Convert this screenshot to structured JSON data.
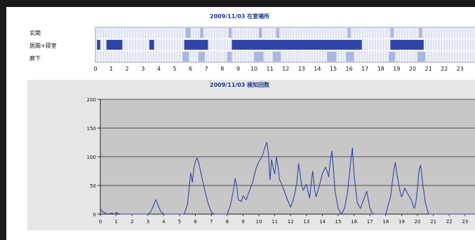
{
  "presence_chart": {
    "title": "2009/11/03  在室場所",
    "rows": [
      "玄関",
      "居間+寝室",
      "廊下"
    ],
    "hours": [
      "0",
      "1",
      "2",
      "3",
      "4",
      "5",
      "6",
      "7",
      "8",
      "9",
      "10",
      "11",
      "12",
      "13",
      "14",
      "15",
      "16",
      "17",
      "18",
      "19",
      "20",
      "21",
      "22",
      "23"
    ],
    "colors": {
      "empty": "#eef0f7",
      "light": "#aab8e0",
      "medium": "#6f86cf",
      "dark": "#2f45a8",
      "gridline": "#c8cce0"
    },
    "cells": {
      "玄関": [
        [
          5.7,
          6.0,
          "light"
        ],
        [
          6.6,
          6.8,
          "light"
        ],
        [
          8.4,
          8.6,
          "light"
        ],
        [
          10.3,
          10.5,
          "light"
        ],
        [
          11.4,
          11.6,
          "light"
        ],
        [
          15.9,
          16.1,
          "light"
        ],
        [
          18.6,
          18.8,
          "light"
        ],
        [
          20.4,
          20.6,
          "light"
        ]
      ],
      "居間+寝室": [
        [
          0.1,
          0.3,
          "dark"
        ],
        [
          0.7,
          1.7,
          "dark"
        ],
        [
          3.4,
          3.7,
          "dark"
        ],
        [
          5.6,
          7.1,
          "dark"
        ],
        [
          8.6,
          16.8,
          "dark"
        ],
        [
          18.6,
          20.7,
          "dark"
        ]
      ],
      "廊下": [
        [
          5.5,
          5.9,
          "light"
        ],
        [
          6.5,
          6.9,
          "light"
        ],
        [
          8.3,
          8.6,
          "light"
        ],
        [
          10.0,
          10.6,
          "light"
        ],
        [
          11.2,
          11.7,
          "light"
        ],
        [
          14.6,
          15.2,
          "light"
        ],
        [
          15.8,
          16.3,
          "light"
        ],
        [
          18.5,
          18.9,
          "light"
        ],
        [
          20.3,
          20.8,
          "light"
        ]
      ]
    }
  },
  "chart_data": {
    "type": "line",
    "title": "2009/11/03  検知回数",
    "xlabel": "",
    "ylabel": "",
    "xlim": [
      0,
      24
    ],
    "ylim": [
      0,
      200
    ],
    "yticks": [
      0,
      50,
      100,
      150,
      200
    ],
    "xticks": [
      "0",
      "1",
      "2",
      "3",
      "4",
      "5",
      "6",
      "7",
      "8",
      "9",
      "10",
      "11",
      "12",
      "13",
      "14",
      "15",
      "16",
      "17",
      "18",
      "19",
      "20",
      "21",
      "22",
      "23",
      "24"
    ],
    "grid": true,
    "series": [
      {
        "name": "",
        "color": "#3344aa",
        "points": [
          [
            0,
            10
          ],
          [
            0.1,
            5
          ],
          [
            0.3,
            2
          ],
          [
            0.5,
            0
          ],
          [
            0.7,
            2
          ],
          [
            0.9,
            0
          ],
          [
            1.0,
            3
          ],
          [
            1.1,
            1
          ],
          [
            1.3,
            0
          ],
          [
            3.0,
            0
          ],
          [
            3.2,
            5
          ],
          [
            3.4,
            18
          ],
          [
            3.5,
            25
          ],
          [
            3.6,
            18
          ],
          [
            3.8,
            5
          ],
          [
            4.0,
            0
          ],
          [
            5.3,
            0
          ],
          [
            5.5,
            18
          ],
          [
            5.6,
            45
          ],
          [
            5.7,
            72
          ],
          [
            5.8,
            55
          ],
          [
            5.9,
            80
          ],
          [
            6.0,
            92
          ],
          [
            6.1,
            98
          ],
          [
            6.2,
            90
          ],
          [
            6.4,
            65
          ],
          [
            6.6,
            40
          ],
          [
            6.8,
            18
          ],
          [
            7.0,
            3
          ],
          [
            7.2,
            0
          ],
          [
            8.0,
            0
          ],
          [
            8.2,
            15
          ],
          [
            8.4,
            42
          ],
          [
            8.5,
            62
          ],
          [
            8.6,
            50
          ],
          [
            8.7,
            25
          ],
          [
            8.9,
            22
          ],
          [
            9.0,
            32
          ],
          [
            9.2,
            25
          ],
          [
            9.4,
            40
          ],
          [
            9.5,
            48
          ],
          [
            9.6,
            55
          ],
          [
            9.8,
            78
          ],
          [
            10.0,
            92
          ],
          [
            10.2,
            100
          ],
          [
            10.4,
            118
          ],
          [
            10.5,
            125
          ],
          [
            10.6,
            105
          ],
          [
            10.7,
            60
          ],
          [
            10.8,
            95
          ],
          [
            10.9,
            80
          ],
          [
            11.0,
            70
          ],
          [
            11.1,
            100
          ],
          [
            11.2,
            85
          ],
          [
            11.3,
            60
          ],
          [
            11.4,
            55
          ],
          [
            11.6,
            40
          ],
          [
            11.8,
            25
          ],
          [
            12.0,
            12
          ],
          [
            12.2,
            28
          ],
          [
            12.4,
            55
          ],
          [
            12.5,
            88
          ],
          [
            12.6,
            70
          ],
          [
            12.7,
            48
          ],
          [
            12.8,
            42
          ],
          [
            13.0,
            52
          ],
          [
            13.1,
            38
          ],
          [
            13.2,
            28
          ],
          [
            13.3,
            55
          ],
          [
            13.4,
            75
          ],
          [
            13.5,
            45
          ],
          [
            13.6,
            30
          ],
          [
            13.8,
            48
          ],
          [
            14.0,
            70
          ],
          [
            14.2,
            82
          ],
          [
            14.3,
            75
          ],
          [
            14.4,
            65
          ],
          [
            14.5,
            92
          ],
          [
            14.6,
            110
          ],
          [
            14.7,
            80
          ],
          [
            14.8,
            40
          ],
          [
            15.0,
            10
          ],
          [
            15.2,
            0
          ],
          [
            15.4,
            10
          ],
          [
            15.6,
            40
          ],
          [
            15.8,
            95
          ],
          [
            15.9,
            115
          ],
          [
            16.0,
            70
          ],
          [
            16.2,
            20
          ],
          [
            16.4,
            10
          ],
          [
            16.6,
            25
          ],
          [
            16.8,
            40
          ],
          [
            17.0,
            10
          ],
          [
            17.2,
            0
          ],
          [
            18.0,
            0
          ],
          [
            18.3,
            30
          ],
          [
            18.5,
            75
          ],
          [
            18.6,
            90
          ],
          [
            18.7,
            70
          ],
          [
            18.9,
            40
          ],
          [
            19.0,
            30
          ],
          [
            19.2,
            45
          ],
          [
            19.4,
            35
          ],
          [
            19.6,
            25
          ],
          [
            19.8,
            10
          ],
          [
            19.9,
            20
          ],
          [
            20.0,
            45
          ],
          [
            20.1,
            78
          ],
          [
            20.2,
            85
          ],
          [
            20.3,
            60
          ],
          [
            20.5,
            20
          ],
          [
            20.7,
            0
          ],
          [
            24,
            0
          ]
        ]
      }
    ]
  }
}
